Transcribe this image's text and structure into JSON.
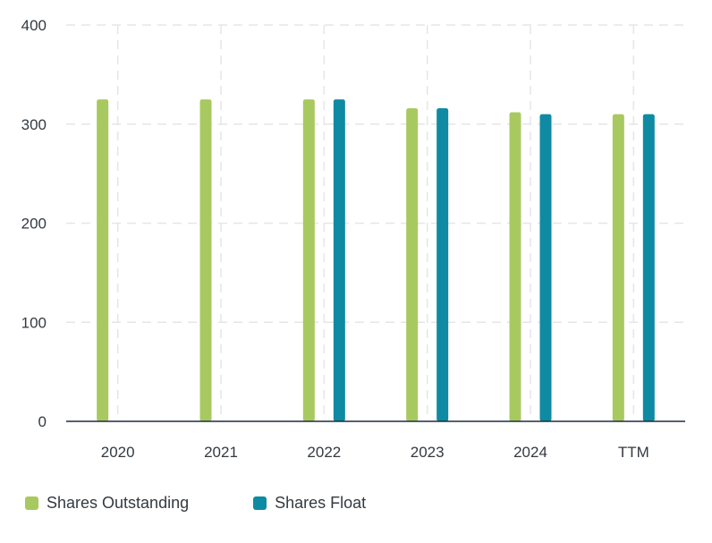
{
  "chart_data": {
    "type": "bar",
    "title": "",
    "xlabel": "",
    "ylabel": "",
    "categories": [
      "2020",
      "2021",
      "2022",
      "2023",
      "2024",
      "TTM"
    ],
    "series": [
      {
        "name": "Shares Outstanding",
        "color": "#a8c960",
        "values": [
          325,
          325,
          325,
          316,
          312,
          310
        ]
      },
      {
        "name": "Shares Float",
        "color": "#0f8aa3",
        "values": [
          null,
          null,
          325,
          316,
          310,
          310
        ]
      }
    ],
    "ylim": [
      0,
      400
    ],
    "yticks": [
      0,
      100,
      200,
      300,
      400
    ],
    "grid": true,
    "legend_position": "bottom-left"
  }
}
